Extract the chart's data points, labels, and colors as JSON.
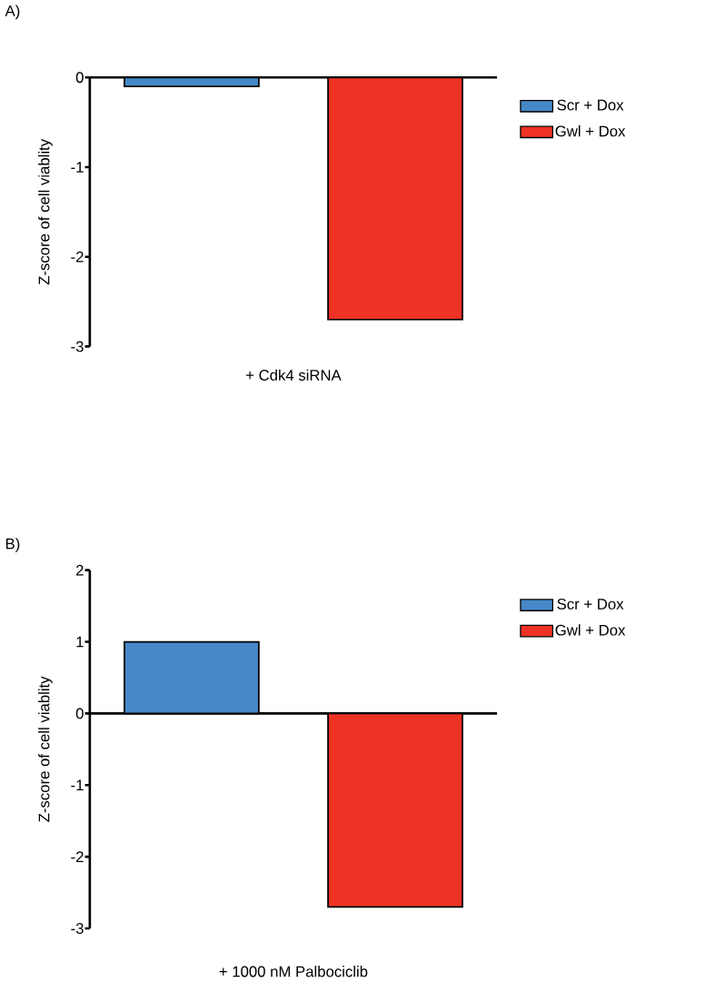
{
  "chart_data": [
    {
      "type": "bar",
      "title": "A)",
      "xlabel": "+ Cdk4 siRNA",
      "ylabel": "Z-score of cell viablity",
      "categories": [
        null
      ],
      "ylim": [
        -3,
        0
      ],
      "yticks": [
        -3,
        -2,
        -1,
        0
      ],
      "legend": "top right",
      "series": [
        {
          "name": "Scr + Dox",
          "color": "#4689c8",
          "values": [
            -0.1
          ]
        },
        {
          "name": "Gwl + Dox",
          "color": "#ee3224",
          "values": [
            -2.7
          ]
        }
      ]
    },
    {
      "type": "bar",
      "title": "B)",
      "xlabel": "+ 1000 nM Palbociclib",
      "ylabel": "Z-score of cell viablity",
      "categories": [
        null
      ],
      "ylim": [
        -3,
        2
      ],
      "yticks": [
        -3,
        -2,
        -1,
        0,
        1,
        2
      ],
      "legend": "top right",
      "series": [
        {
          "name": "Scr + Dox",
          "color": "#4689c8",
          "values": [
            1.0
          ]
        },
        {
          "name": "Gwl + Dox",
          "color": "#ee3224",
          "values": [
            -2.7
          ]
        }
      ]
    }
  ]
}
